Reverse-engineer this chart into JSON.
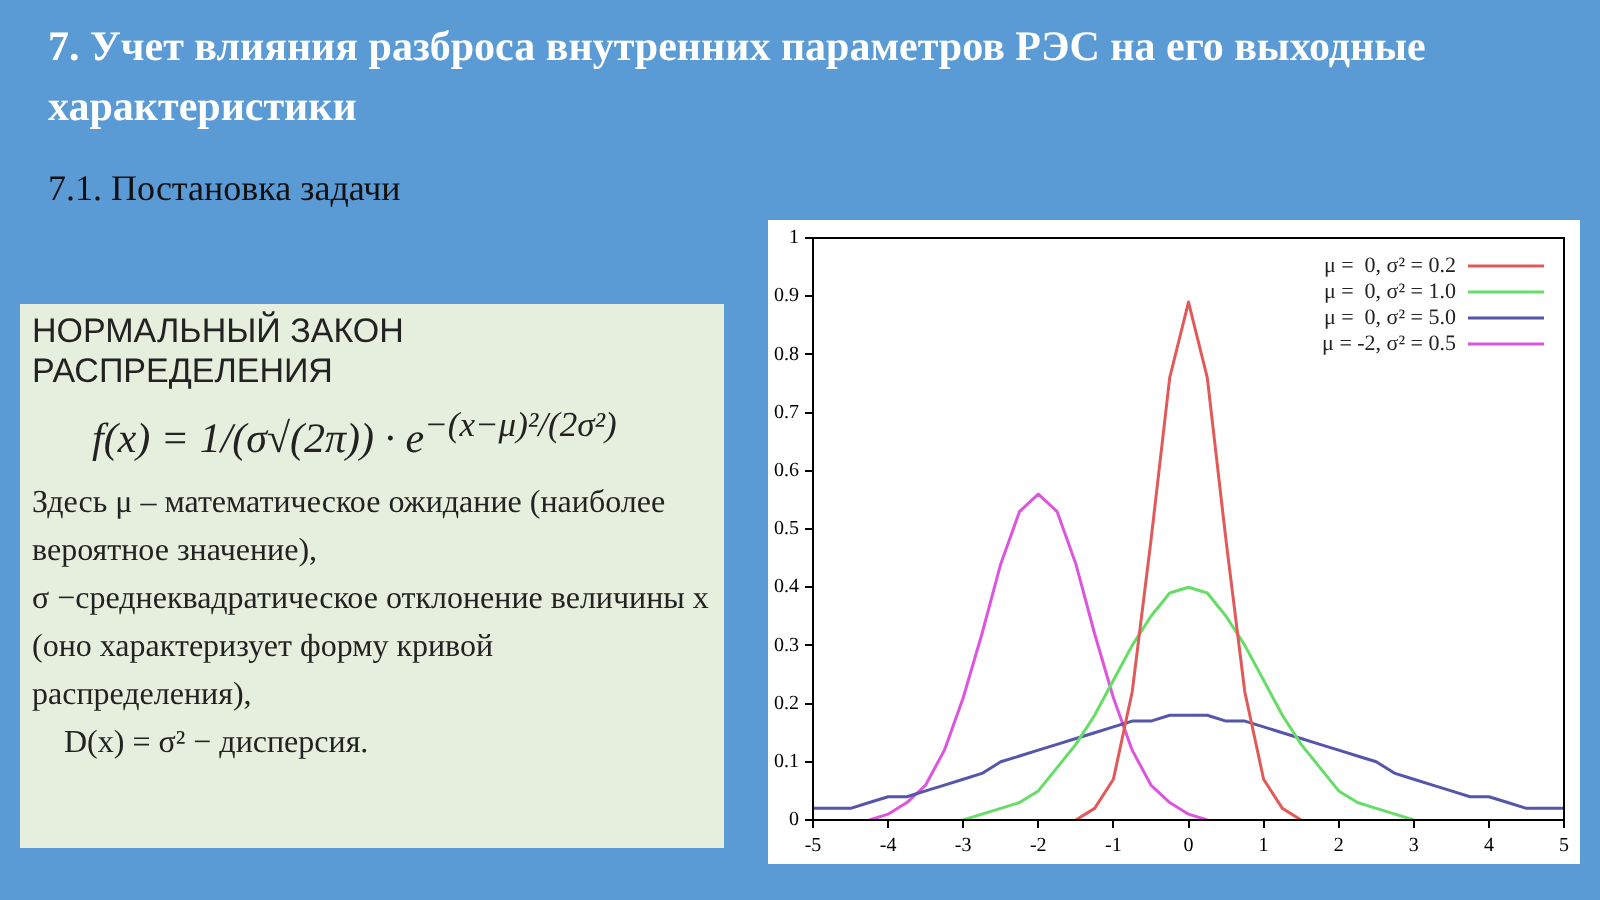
{
  "chart_data": {
    "type": "line",
    "title": "7. Учет влияния разброса внутренних параметров РЭС на его выходные характеристики",
    "subtitle": "7.1. Постановка задачи",
    "annotations": [
      "НОРМАЛЬНЫЙ ЗАКОН РАСПРЕДЕЛЕНИЯ",
      "f(x) = 1/(σ√(2π)) · e$^{−(x−μ)²/(2σ²)}$",
      "Здесь  μ – математическое ожидание (наиболее вероятное значение),",
      "σ −среднеквадратическое отклонение величины x (оно характеризует форму кривой распределения),",
      "D(x) = σ² − дисперсия."
    ],
    "x": [
      -5,
      -4.75,
      -4.5,
      -4.25,
      -4,
      -3.75,
      -3.5,
      -3.25,
      -3,
      -2.75,
      -2.5,
      -2.25,
      -2,
      -1.75,
      -1.5,
      -1.25,
      -1,
      -0.75,
      -0.5,
      -0.25,
      0,
      0.25,
      0.5,
      0.75,
      1,
      1.25,
      1.5,
      1.75,
      2,
      2.25,
      2.5,
      2.75,
      3,
      3.25,
      3.5,
      3.75,
      4,
      4.25,
      4.5,
      4.75,
      5
    ],
    "series": [
      {
        "name": "μ =  0, σ² = 0.2",
        "color": "#e05a5a",
        "x": [
          -1.5,
          -1.25,
          -1,
          -0.75,
          -0.5,
          -0.25,
          0,
          0.25,
          0.5,
          0.75,
          1,
          1.25,
          1.5
        ],
        "values": [
          0,
          0.02,
          0.07,
          0.22,
          0.48,
          0.76,
          0.89,
          0.76,
          0.48,
          0.22,
          0.07,
          0.02,
          0
        ]
      },
      {
        "name": "μ =  0, σ² = 1.0",
        "color": "#66dd66",
        "x": [
          -3,
          -2.75,
          -2.5,
          -2.25,
          -2,
          -1.75,
          -1.5,
          -1.25,
          -1,
          -0.75,
          -0.5,
          -0.25,
          0,
          0.25,
          0.5,
          0.75,
          1,
          1.25,
          1.5,
          1.75,
          2,
          2.25,
          2.5,
          2.75,
          3
        ],
        "values": [
          0,
          0.01,
          0.02,
          0.03,
          0.05,
          0.09,
          0.13,
          0.18,
          0.24,
          0.3,
          0.35,
          0.39,
          0.4,
          0.39,
          0.35,
          0.3,
          0.24,
          0.18,
          0.13,
          0.09,
          0.05,
          0.03,
          0.02,
          0.01,
          0
        ]
      },
      {
        "name": "μ =  0, σ² = 5.0",
        "color": "#5555aa",
        "values": [
          0.02,
          0.02,
          0.02,
          0.03,
          0.04,
          0.04,
          0.05,
          0.06,
          0.07,
          0.08,
          0.1,
          0.11,
          0.12,
          0.13,
          0.14,
          0.15,
          0.16,
          0.17,
          0.17,
          0.18,
          0.18,
          0.18,
          0.17,
          0.17,
          0.16,
          0.15,
          0.14,
          0.13,
          0.12,
          0.11,
          0.1,
          0.08,
          0.07,
          0.06,
          0.05,
          0.04,
          0.04,
          0.03,
          0.02,
          0.02,
          0.02
        ]
      },
      {
        "name": "μ = -2, σ² = 0.5",
        "color": "#dd55dd",
        "x": [
          -4.25,
          -4,
          -3.75,
          -3.5,
          -3.25,
          -3,
          -2.75,
          -2.5,
          -2.25,
          -2,
          -1.75,
          -1.5,
          -1.25,
          -1,
          -0.75,
          -0.5,
          -0.25,
          0,
          0.25
        ],
        "values": [
          0,
          0.01,
          0.03,
          0.06,
          0.12,
          0.21,
          0.32,
          0.44,
          0.53,
          0.56,
          0.53,
          0.44,
          0.32,
          0.21,
          0.12,
          0.06,
          0.03,
          0.01,
          0
        ]
      }
    ],
    "xlim": [
      -5,
      5
    ],
    "xticks": [
      -5,
      -4,
      -3,
      -2,
      -1,
      0,
      1,
      2,
      3,
      4,
      5
    ],
    "ylim": [
      0,
      1
    ],
    "yticks": [
      0,
      0.1,
      0.2,
      0.3,
      0.4,
      0.5,
      0.6,
      0.7,
      0.8,
      0.9,
      1
    ],
    "grid": false,
    "legend": "top right",
    "marker": "none",
    "line_style": "solid"
  }
}
